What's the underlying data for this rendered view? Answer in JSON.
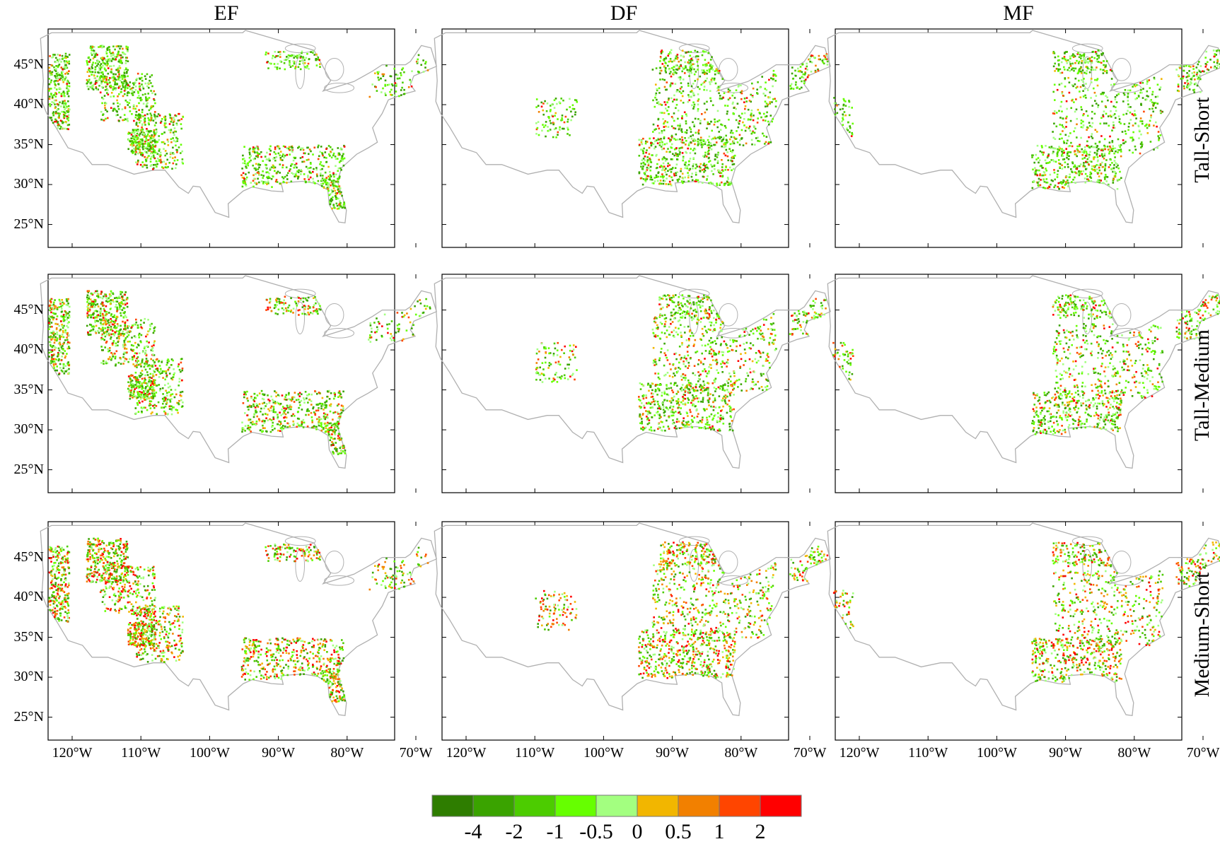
{
  "columns": [
    "EF",
    "DF",
    "MF"
  ],
  "rows": [
    "Tall-Short",
    "Tall-Medium",
    "Medium-Short"
  ],
  "lat_ticks": [
    "45°N",
    "40°N",
    "35°N",
    "30°N",
    "25°N"
  ],
  "lon_ticks": [
    "120°W",
    "110°W",
    "100°W",
    "90°W",
    "80°W",
    "70°W"
  ],
  "colorbar": {
    "colors": [
      "#2e7d00",
      "#3aa300",
      "#4ccc00",
      "#66ff00",
      "#a3ff80",
      "#f2b600",
      "#f28000",
      "#ff4500",
      "#ff0000"
    ],
    "labels": [
      "-4",
      "-2",
      "-1",
      "-0.5",
      "0",
      "0.5",
      "1",
      "2"
    ]
  }
}
